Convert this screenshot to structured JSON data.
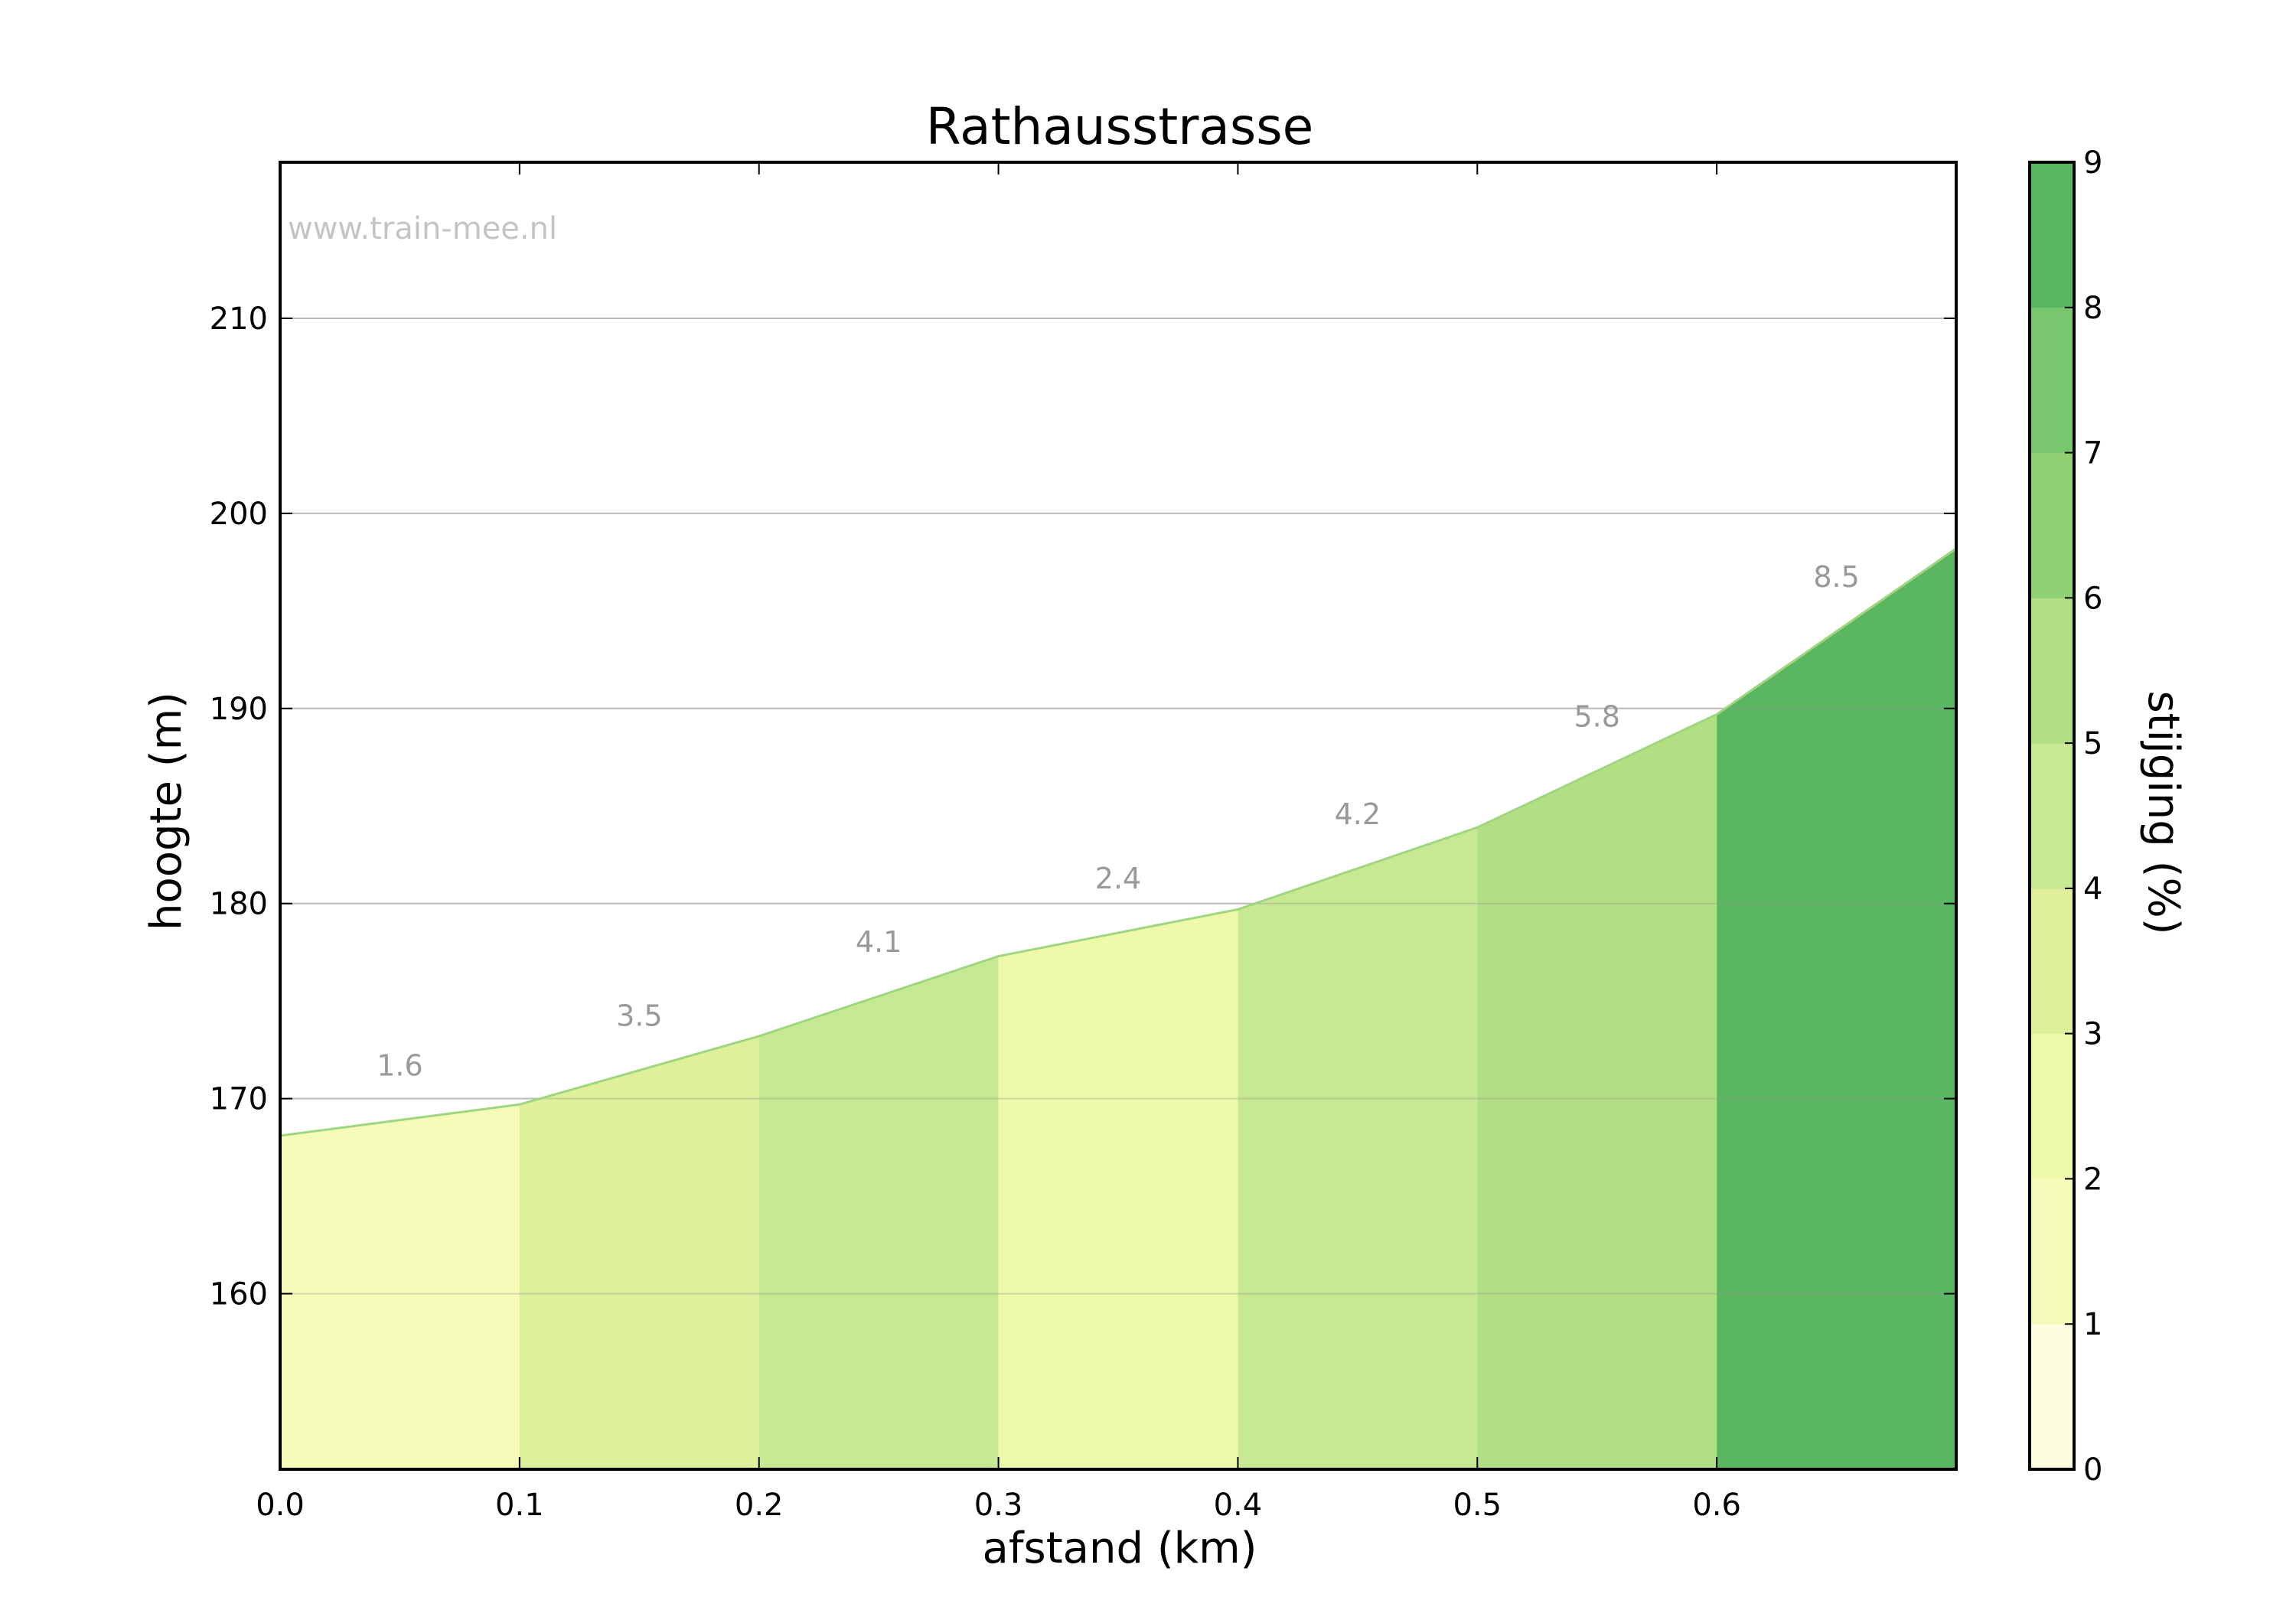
{
  "chart_data": {
    "type": "area",
    "title": "Rathausstrasse",
    "xlabel": "afstand (km)",
    "ylabel": "hoogte (m)",
    "watermark": "www.train-mee.nl",
    "xlim": [
      0.0,
      0.7
    ],
    "ylim": [
      151,
      218
    ],
    "x_ticks": [
      "0.0",
      "0.1",
      "0.2",
      "0.3",
      "0.4",
      "0.5",
      "0.6"
    ],
    "y_ticks": [
      "160",
      "170",
      "180",
      "190",
      "200",
      "210"
    ],
    "grid": true,
    "profile": {
      "x": [
        0.0,
        0.1,
        0.2,
        0.3,
        0.4,
        0.5,
        0.6,
        0.7
      ],
      "y": [
        168.1,
        169.7,
        173.2,
        177.3,
        179.7,
        183.9,
        189.7,
        198.2
      ]
    },
    "segments": [
      {
        "label": "1.6",
        "gradient": 1.6,
        "color": "#f5fbb8"
      },
      {
        "label": "3.5",
        "gradient": 3.5,
        "color": "#dff09b"
      },
      {
        "label": "4.1",
        "gradient": 4.1,
        "color": "#c8e994"
      },
      {
        "label": "2.4",
        "gradient": 2.4,
        "color": "#eef9a9"
      },
      {
        "label": "4.2",
        "gradient": 4.2,
        "color": "#c8e994"
      },
      {
        "label": "5.8",
        "gradient": 5.8,
        "color": "#b2de84"
      },
      {
        "label": "8.5",
        "gradient": 8.5,
        "color": "#5ab660"
      }
    ],
    "line_color": "#9fd67f",
    "colorbar": {
      "label": "stijging (%)",
      "ticks": [
        "0",
        "1",
        "2",
        "3",
        "4",
        "5",
        "6",
        "7",
        "8",
        "9"
      ],
      "colors": [
        "#fefde2",
        "#f5fbb8",
        "#eef9a9",
        "#dff09b",
        "#c8e994",
        "#b2de84",
        "#90cf74",
        "#78c76e",
        "#5ab660"
      ]
    }
  }
}
